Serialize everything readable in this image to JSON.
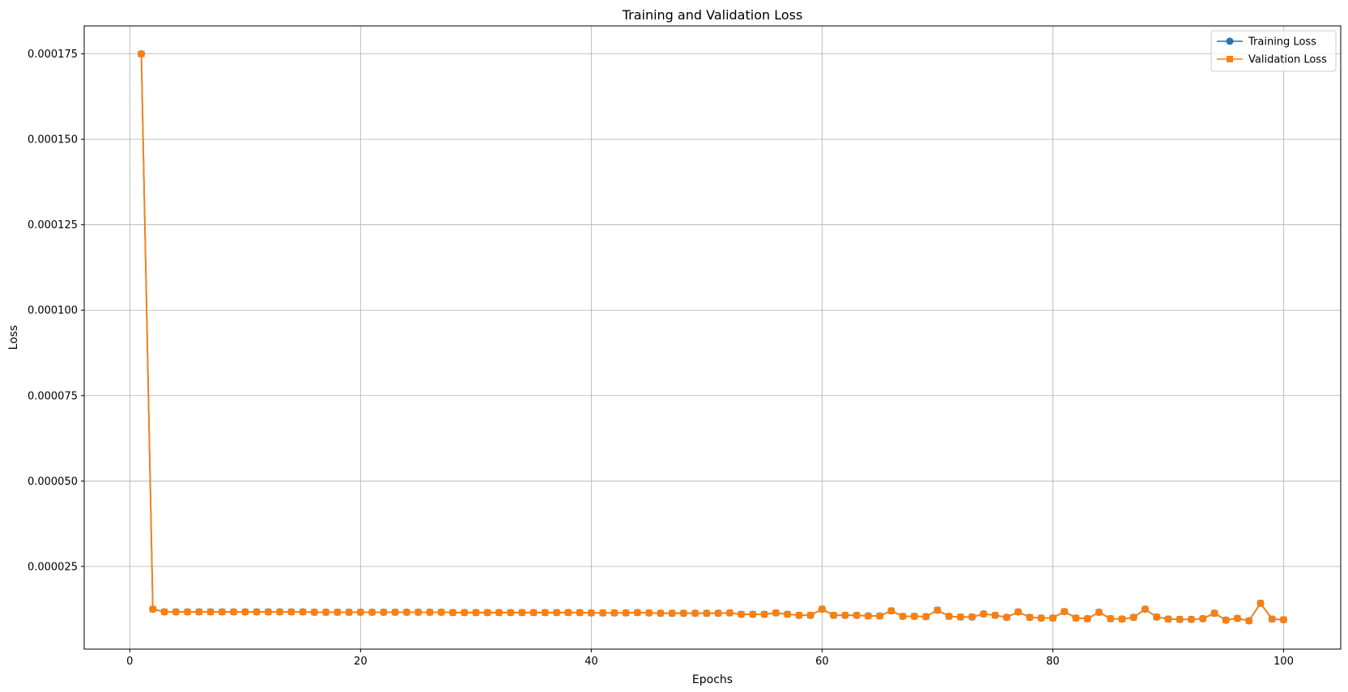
{
  "chart_data": {
    "type": "line",
    "title": "Training and Validation Loss",
    "xlabel": "Epochs",
    "ylabel": "Loss",
    "xlim": [
      -3.95,
      104.95
    ],
    "ylim": [
      8e-07,
      0.0001832
    ],
    "x_ticks": [
      0,
      20,
      40,
      60,
      80,
      100
    ],
    "x_tick_labels": [
      "0",
      "20",
      "40",
      "60",
      "80",
      "100"
    ],
    "y_ticks": [
      2.5e-05,
      5e-05,
      7.5e-05,
      0.0001,
      0.000125,
      0.00015,
      0.000175
    ],
    "y_tick_labels": [
      "0.000025",
      "0.000050",
      "0.000075",
      "0.000100",
      "0.000125",
      "0.000150",
      "0.000175"
    ],
    "grid": true,
    "legend_position": "top-right",
    "x": [
      1,
      2,
      3,
      4,
      5,
      6,
      7,
      8,
      9,
      10,
      11,
      12,
      13,
      14,
      15,
      16,
      17,
      18,
      19,
      20,
      21,
      22,
      23,
      24,
      25,
      26,
      27,
      28,
      29,
      30,
      31,
      32,
      33,
      34,
      35,
      36,
      37,
      38,
      39,
      40,
      41,
      42,
      43,
      44,
      45,
      46,
      47,
      48,
      49,
      50,
      51,
      52,
      53,
      54,
      55,
      56,
      57,
      58,
      59,
      60,
      61,
      62,
      63,
      64,
      65,
      66,
      67,
      68,
      69,
      70,
      71,
      72,
      73,
      74,
      75,
      76,
      77,
      78,
      79,
      80,
      81,
      82,
      83,
      84,
      85,
      86,
      87,
      88,
      89,
      90,
      91,
      92,
      93,
      94,
      95,
      96,
      97,
      98,
      99,
      100
    ],
    "series": [
      {
        "name": "Training Loss",
        "color": "#1f77b4",
        "marker": "circle",
        "values": [
          0.000175,
          1.25e-05,
          1.17e-05,
          1.17e-05,
          1.17e-05,
          1.17e-05,
          1.17e-05,
          1.17e-05,
          1.17e-05,
          1.17e-05,
          1.17e-05,
          1.17e-05,
          1.17e-05,
          1.17e-05,
          1.17e-05,
          1.16e-05,
          1.16e-05,
          1.16e-05,
          1.16e-05,
          1.16e-05,
          1.16e-05,
          1.16e-05,
          1.16e-05,
          1.16e-05,
          1.16e-05,
          1.16e-05,
          1.16e-05,
          1.15e-05,
          1.15e-05,
          1.15e-05,
          1.15e-05,
          1.15e-05,
          1.15e-05,
          1.15e-05,
          1.15e-05,
          1.15e-05,
          1.15e-05,
          1.15e-05,
          1.15e-05,
          1.14e-05,
          1.14e-05,
          1.14e-05,
          1.14e-05,
          1.15e-05,
          1.14e-05,
          1.13e-05,
          1.13e-05,
          1.13e-05,
          1.13e-05,
          1.13e-05,
          1.13e-05,
          1.14e-05,
          1.1e-05,
          1.1e-05,
          1.1e-05,
          1.14e-05,
          1.1e-05,
          1.07e-05,
          1.07e-05,
          1.25e-05,
          1.07e-05,
          1.07e-05,
          1.07e-05,
          1.05e-05,
          1.05e-05,
          1.2e-05,
          1.04e-05,
          1.04e-05,
          1.03e-05,
          1.22e-05,
          1.04e-05,
          1.02e-05,
          1.02e-05,
          1.11e-05,
          1.07e-05,
          1.01e-05,
          1.17e-05,
          1.01e-05,
          9.9e-06,
          9.9e-06,
          1.18e-05,
          9.9e-06,
          9.7e-06,
          1.16e-05,
          9.7e-06,
          9.6e-06,
          1.01e-05,
          1.25e-05,
          1.02e-05,
          9.6e-06,
          9.5e-06,
          9.5e-06,
          9.7e-06,
          1.13e-05,
          9.3e-06,
          9.8e-06,
          9.1e-06,
          1.42e-05,
          9.6e-06,
          9.4e-06
        ]
      },
      {
        "name": "Validation Loss",
        "color": "#ff7f0e",
        "marker": "square",
        "values": [
          0.000175,
          1.25e-05,
          1.17e-05,
          1.17e-05,
          1.17e-05,
          1.17e-05,
          1.17e-05,
          1.17e-05,
          1.17e-05,
          1.17e-05,
          1.17e-05,
          1.17e-05,
          1.17e-05,
          1.17e-05,
          1.17e-05,
          1.16e-05,
          1.16e-05,
          1.16e-05,
          1.16e-05,
          1.16e-05,
          1.16e-05,
          1.16e-05,
          1.16e-05,
          1.16e-05,
          1.16e-05,
          1.16e-05,
          1.16e-05,
          1.15e-05,
          1.15e-05,
          1.15e-05,
          1.15e-05,
          1.15e-05,
          1.15e-05,
          1.15e-05,
          1.15e-05,
          1.15e-05,
          1.15e-05,
          1.15e-05,
          1.15e-05,
          1.14e-05,
          1.14e-05,
          1.14e-05,
          1.14e-05,
          1.15e-05,
          1.14e-05,
          1.13e-05,
          1.13e-05,
          1.13e-05,
          1.13e-05,
          1.13e-05,
          1.13e-05,
          1.14e-05,
          1.1e-05,
          1.1e-05,
          1.1e-05,
          1.14e-05,
          1.1e-05,
          1.07e-05,
          1.07e-05,
          1.25e-05,
          1.07e-05,
          1.07e-05,
          1.07e-05,
          1.05e-05,
          1.05e-05,
          1.2e-05,
          1.04e-05,
          1.04e-05,
          1.03e-05,
          1.22e-05,
          1.04e-05,
          1.02e-05,
          1.02e-05,
          1.11e-05,
          1.07e-05,
          1.01e-05,
          1.17e-05,
          1.01e-05,
          9.9e-06,
          9.9e-06,
          1.18e-05,
          9.9e-06,
          9.7e-06,
          1.16e-05,
          9.7e-06,
          9.6e-06,
          1.01e-05,
          1.25e-05,
          1.02e-05,
          9.6e-06,
          9.5e-06,
          9.5e-06,
          9.7e-06,
          1.13e-05,
          9.3e-06,
          9.8e-06,
          9.1e-06,
          1.42e-05,
          9.6e-06,
          9.4e-06
        ]
      }
    ]
  }
}
